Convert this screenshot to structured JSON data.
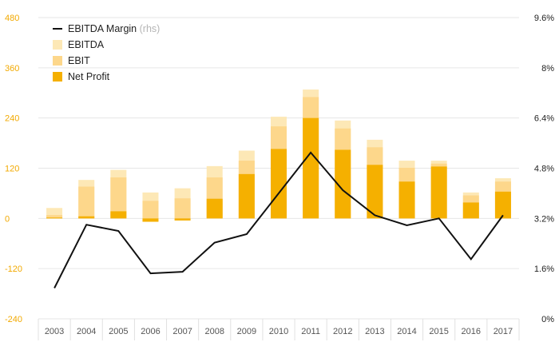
{
  "chart_data": {
    "type": "bar",
    "categories": [
      "2003",
      "2004",
      "2005",
      "2006",
      "2007",
      "2008",
      "2009",
      "2010",
      "2011",
      "2012",
      "2013",
      "2014",
      "2015",
      "2016",
      "2017"
    ],
    "series": [
      {
        "name": "EBITDA",
        "type": "stacked-bar",
        "axis": "left",
        "color": "#fde8b6",
        "values": [
          25,
          92,
          116,
          62,
          72,
          125,
          162,
          243,
          308,
          234,
          188,
          138,
          138,
          62,
          96
        ]
      },
      {
        "name": "EBIT",
        "type": "stacked-bar",
        "axis": "left",
        "color": "#fdd78b",
        "values": [
          8,
          76,
          98,
          42,
          48,
          98,
          138,
          220,
          290,
          215,
          170,
          121,
          131,
          55,
          88
        ]
      },
      {
        "name": "Net Profit",
        "type": "stacked-bar",
        "axis": "left",
        "color": "#f5b000",
        "values": [
          2,
          5,
          17,
          -8,
          -5,
          47,
          106,
          166,
          240,
          164,
          128,
          88,
          124,
          38,
          64
        ]
      },
      {
        "name": "EBITDA Margin",
        "name_suffix": "(rhs)",
        "type": "line",
        "axis": "right",
        "color": "#111111",
        "values": [
          0.98,
          3.0,
          2.8,
          1.45,
          1.5,
          2.43,
          2.7,
          4.0,
          5.3,
          4.1,
          3.3,
          2.98,
          3.2,
          1.9,
          3.3
        ]
      }
    ],
    "y_left": {
      "ticks": [
        "480",
        "360",
        "240",
        "120",
        "0",
        "-120",
        "-240"
      ],
      "ylim": [
        -240,
        480
      ],
      "color": "#f2a900"
    },
    "y_right": {
      "ticks": [
        "9.6%",
        "8%",
        "6.4%",
        "4.8%",
        "3.2%",
        "1.6%",
        "0%"
      ],
      "ylim": [
        0,
        9.6
      ],
      "unit": "%"
    },
    "grid": true,
    "legend_position": "top-left"
  }
}
